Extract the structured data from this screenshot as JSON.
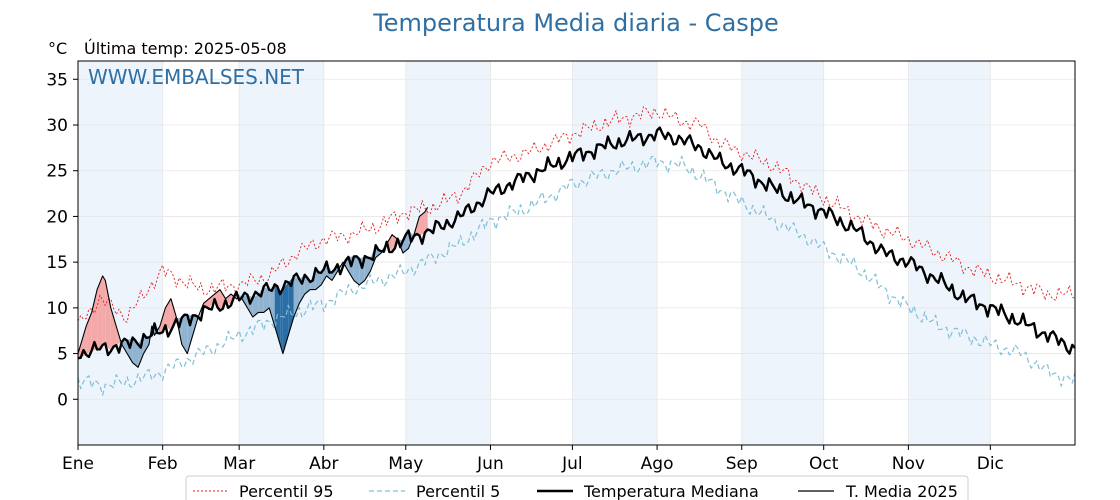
{
  "chart_data": {
    "type": "line",
    "title": "Temperatura Media diaria - Caspe",
    "unit": "°C",
    "last_update": "Última temp: 2025-05-08",
    "watermark": "WWW.EMBALSES.NET",
    "ylim": [
      -5,
      37
    ],
    "xlim": [
      0,
      365
    ],
    "yticks": [
      0,
      5,
      10,
      15,
      20,
      25,
      30,
      35
    ],
    "months": [
      {
        "label": "Ene",
        "day": 0
      },
      {
        "label": "Feb",
        "day": 31
      },
      {
        "label": "Mar",
        "day": 59
      },
      {
        "label": "Abr",
        "day": 90
      },
      {
        "label": "May",
        "day": 120
      },
      {
        "label": "Jun",
        "day": 151
      },
      {
        "label": "Jul",
        "day": 181
      },
      {
        "label": "Ago",
        "day": 212
      },
      {
        "label": "Sep",
        "day": 243
      },
      {
        "label": "Oct",
        "day": 273
      },
      {
        "label": "Nov",
        "day": 304
      },
      {
        "label": "Dic",
        "day": 334
      }
    ],
    "grid": true,
    "legend_position": "bottom",
    "colors": {
      "p95": "#e31a1c",
      "p5": "#7fbfd6",
      "median": "#000000",
      "current": "#000000",
      "above": "#f4a9a8",
      "below_light": "#8fb3d1",
      "below_dark": "#2a6ea6",
      "band": "#eef4fb"
    },
    "series": [
      {
        "name": "Percentil 95",
        "key": "p95",
        "anchors": [
          [
            0,
            8
          ],
          [
            8,
            11
          ],
          [
            18,
            9
          ],
          [
            28,
            13
          ],
          [
            31,
            14
          ],
          [
            45,
            12
          ],
          [
            59,
            12.5
          ],
          [
            70,
            13.5
          ],
          [
            80,
            16
          ],
          [
            90,
            17.5
          ],
          [
            100,
            18
          ],
          [
            110,
            19
          ],
          [
            120,
            20.5
          ],
          [
            130,
            21
          ],
          [
            140,
            22.5
          ],
          [
            151,
            26
          ],
          [
            165,
            27
          ],
          [
            181,
            29
          ],
          [
            196,
            30.5
          ],
          [
            212,
            31.5
          ],
          [
            220,
            30.5
          ],
          [
            228,
            30
          ],
          [
            235,
            28
          ],
          [
            243,
            27
          ],
          [
            255,
            25.5
          ],
          [
            265,
            23.5
          ],
          [
            273,
            22
          ],
          [
            285,
            20
          ],
          [
            295,
            18.5
          ],
          [
            304,
            17.5
          ],
          [
            315,
            16
          ],
          [
            325,
            14.5
          ],
          [
            334,
            13.5
          ],
          [
            345,
            12.5
          ],
          [
            355,
            11.5
          ],
          [
            365,
            11.5
          ]
        ],
        "amp": 1.0
      },
      {
        "name": "Percentil 5",
        "key": "p5",
        "anchors": [
          [
            0,
            2
          ],
          [
            10,
            1.5
          ],
          [
            20,
            2
          ],
          [
            31,
            3
          ],
          [
            45,
            5
          ],
          [
            59,
            7
          ],
          [
            70,
            8.5
          ],
          [
            80,
            9.5
          ],
          [
            90,
            10.5
          ],
          [
            100,
            12
          ],
          [
            110,
            13
          ],
          [
            120,
            14
          ],
          [
            130,
            15.5
          ],
          [
            140,
            17
          ],
          [
            151,
            19.5
          ],
          [
            165,
            21
          ],
          [
            181,
            23.5
          ],
          [
            196,
            25
          ],
          [
            212,
            26
          ],
          [
            222,
            25.5
          ],
          [
            230,
            24
          ],
          [
            243,
            21.5
          ],
          [
            255,
            19.5
          ],
          [
            265,
            18
          ],
          [
            273,
            16.5
          ],
          [
            285,
            14.5
          ],
          [
            295,
            12
          ],
          [
            304,
            10
          ],
          [
            315,
            8
          ],
          [
            325,
            7
          ],
          [
            334,
            6
          ],
          [
            345,
            5
          ],
          [
            355,
            3
          ],
          [
            365,
            2
          ]
        ],
        "amp": 1.0
      },
      {
        "name": "Temperatura Mediana",
        "key": "median",
        "anchors": [
          [
            0,
            5
          ],
          [
            8,
            5.5
          ],
          [
            18,
            6
          ],
          [
            31,
            7.5
          ],
          [
            45,
            9.5
          ],
          [
            59,
            11
          ],
          [
            70,
            12
          ],
          [
            80,
            13
          ],
          [
            90,
            14
          ],
          [
            100,
            15
          ],
          [
            110,
            16
          ],
          [
            120,
            17.5
          ],
          [
            130,
            18.5
          ],
          [
            140,
            20
          ],
          [
            151,
            22.5
          ],
          [
            165,
            24.5
          ],
          [
            181,
            26.5
          ],
          [
            196,
            28
          ],
          [
            212,
            29
          ],
          [
            220,
            28.5
          ],
          [
            228,
            27.5
          ],
          [
            235,
            26
          ],
          [
            243,
            25
          ],
          [
            255,
            23
          ],
          [
            265,
            21.5
          ],
          [
            273,
            20.5
          ],
          [
            285,
            18.5
          ],
          [
            295,
            16
          ],
          [
            304,
            15
          ],
          [
            315,
            13
          ],
          [
            325,
            11
          ],
          [
            334,
            10
          ],
          [
            345,
            8.5
          ],
          [
            355,
            7
          ],
          [
            365,
            5.5
          ]
        ],
        "amp": 1.0
      },
      {
        "name": "T. Media 2025",
        "key": "current",
        "points": [
          [
            0,
            5
          ],
          [
            3,
            8
          ],
          [
            5,
            9.5
          ],
          [
            7,
            12
          ],
          [
            9,
            13.5
          ],
          [
            10,
            13
          ],
          [
            12,
            10
          ],
          [
            14,
            8
          ],
          [
            16,
            6
          ],
          [
            18,
            5
          ],
          [
            20,
            4
          ],
          [
            22,
            3.5
          ],
          [
            24,
            5
          ],
          [
            26,
            6
          ],
          [
            27,
            8
          ],
          [
            28,
            7
          ],
          [
            30,
            8
          ],
          [
            32,
            10
          ],
          [
            34,
            11
          ],
          [
            36,
            9
          ],
          [
            38,
            6
          ],
          [
            40,
            5
          ],
          [
            42,
            7
          ],
          [
            44,
            9
          ],
          [
            46,
            10.5
          ],
          [
            48,
            11
          ],
          [
            50,
            11.5
          ],
          [
            52,
            12
          ],
          [
            54,
            11
          ],
          [
            56,
            11.5
          ],
          [
            58,
            11
          ],
          [
            60,
            11
          ],
          [
            62,
            10
          ],
          [
            64,
            9
          ],
          [
            66,
            9.5
          ],
          [
            68,
            9.5
          ],
          [
            70,
            10
          ],
          [
            72,
            8
          ],
          [
            74,
            6
          ],
          [
            75,
            5
          ],
          [
            77,
            7
          ],
          [
            79,
            9
          ],
          [
            81,
            10.5
          ],
          [
            83,
            11.5
          ],
          [
            85,
            12
          ],
          [
            87,
            12
          ],
          [
            89,
            12.5
          ],
          [
            91,
            13.5
          ],
          [
            93,
            13
          ],
          [
            95,
            14
          ],
          [
            97,
            15
          ],
          [
            99,
            14
          ],
          [
            101,
            13
          ],
          [
            103,
            12.5
          ],
          [
            105,
            13
          ],
          [
            107,
            14
          ],
          [
            109,
            15.5
          ],
          [
            111,
            16
          ],
          [
            113,
            17
          ],
          [
            115,
            18
          ],
          [
            117,
            17.5
          ],
          [
            119,
            16
          ],
          [
            121,
            16.5
          ],
          [
            123,
            18
          ],
          [
            125,
            20
          ],
          [
            127,
            20.5
          ],
          [
            128,
            21
          ]
        ]
      }
    ]
  },
  "legend": [
    {
      "label": "Percentil 95",
      "key": "p95"
    },
    {
      "label": "Percentil 5",
      "key": "p5"
    },
    {
      "label": "Temperatura Mediana",
      "key": "median"
    },
    {
      "label": "T. Media 2025",
      "key": "current"
    }
  ]
}
